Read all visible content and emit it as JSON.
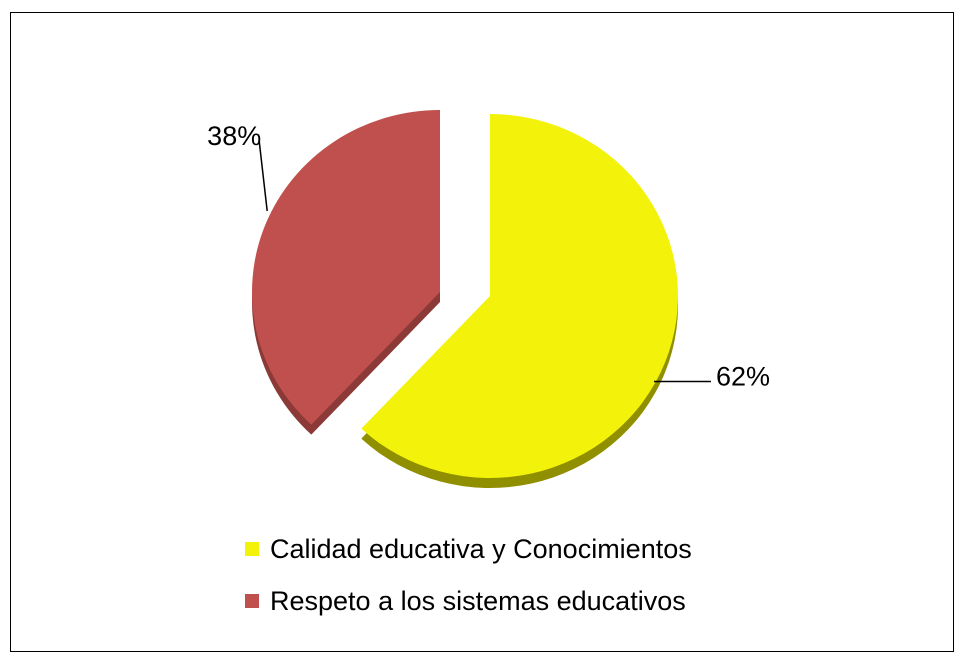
{
  "chart_data": {
    "type": "pie",
    "categories": [
      "Calidad educativa y Conocimientos",
      "Respeto a los sistemas educativos"
    ],
    "values": [
      62,
      38
    ],
    "labels": [
      "62%",
      "38%"
    ],
    "colors": [
      "#f2f20a",
      "#c0504d"
    ],
    "shadow_colors": [
      "#8f8f00",
      "#8c3a37"
    ],
    "legend_position": "bottom",
    "exploded": true
  }
}
